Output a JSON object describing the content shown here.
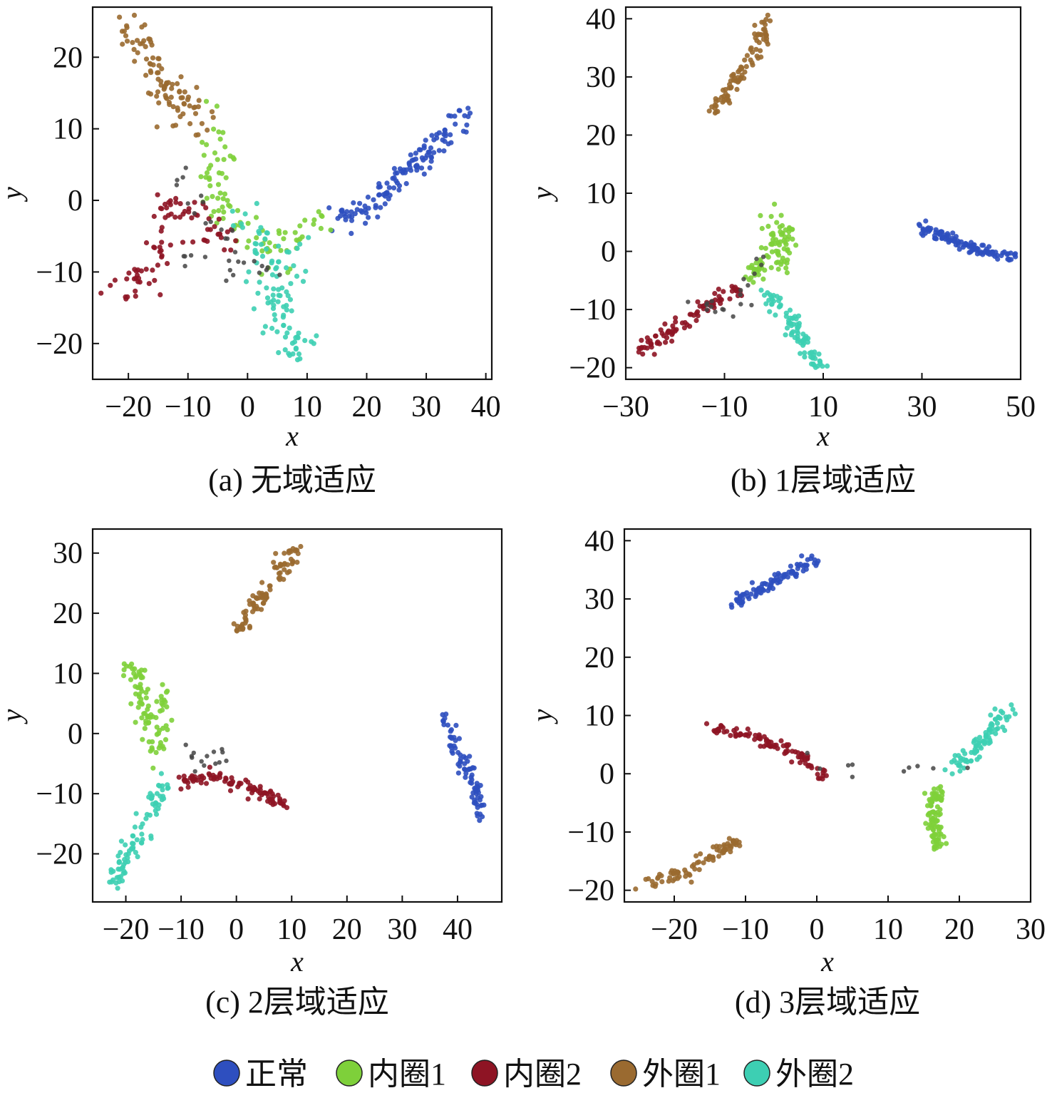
{
  "legend": [
    {
      "label": "正常",
      "color": "#2e4fbf"
    },
    {
      "label": "内圈1",
      "color": "#7ed03a"
    },
    {
      "label": "内圈2",
      "color": "#8e1424"
    },
    {
      "label": "外圈1",
      "color": "#9a6a30"
    },
    {
      "label": "外圈2",
      "color": "#3dcfb3"
    }
  ],
  "chart_data": [
    {
      "type": "scatter",
      "caption": "(a) 无域适应",
      "xlabel": "x",
      "ylabel": "y",
      "xlim": [
        -26,
        41
      ],
      "ylim": [
        -25,
        27
      ],
      "xticks": [
        -20,
        -10,
        0,
        10,
        20,
        30,
        40
      ],
      "yticks": [
        -20,
        -10,
        0,
        10,
        20
      ],
      "xtick_labels": [
        "−20",
        "−10",
        "0",
        "10",
        "20",
        "30",
        "40"
      ],
      "ytick_labels": [
        "−20",
        "−10",
        "0",
        "10",
        "20"
      ],
      "series": [
        {
          "name": "正常",
          "color": "#2e4fbf",
          "noise": 0.9,
          "count": 130,
          "path": [
            [
              15,
              -3
            ],
            [
              22,
              0
            ],
            [
              28,
              5
            ],
            [
              33,
              9
            ],
            [
              38,
              13
            ]
          ]
        },
        {
          "name": "内圈1",
          "color": "#7ed03a",
          "noise": 1.6,
          "count": 90,
          "path": [
            [
              -6,
              11
            ],
            [
              -5,
              5
            ],
            [
              -6,
              0
            ],
            [
              4,
              -7
            ],
            [
              9,
              -4
            ],
            [
              15,
              -4
            ]
          ]
        },
        {
          "name": "内圈2",
          "color": "#8e1424",
          "noise": 1.3,
          "count": 85,
          "path": [
            [
              -22,
              -12
            ],
            [
              -18,
              -11
            ],
            [
              -15,
              -9
            ],
            [
              -14,
              -4
            ],
            [
              -13,
              0
            ],
            [
              -2,
              -6
            ]
          ]
        },
        {
          "name": "外圈1",
          "color": "#9a6a30",
          "noise": 1.4,
          "count": 95,
          "path": [
            [
              -20,
              24
            ],
            [
              -17,
              20
            ],
            [
              -14,
              16
            ],
            [
              -11,
              13
            ],
            [
              -8,
              10
            ]
          ]
        },
        {
          "name": "外圈2",
          "color": "#3dcfb3",
          "noise": 1.6,
          "count": 100,
          "path": [
            [
              -1,
              -2
            ],
            [
              4,
              -8
            ],
            [
              6,
              -15
            ],
            [
              9,
              -22
            ],
            [
              3,
              -14
            ],
            [
              10,
              -6
            ]
          ]
        }
      ],
      "stray": {
        "color": "#444444",
        "count": 32,
        "path": [
          [
            -12,
            4
          ],
          [
            -8,
            0
          ],
          [
            -4,
            -4
          ],
          [
            -2,
            -8
          ],
          [
            4,
            -10
          ],
          [
            -11,
            -8
          ]
        ]
      }
    },
    {
      "type": "scatter",
      "caption": "(b) 1层域适应",
      "xlabel": "x",
      "ylabel": "y",
      "xlim": [
        -30,
        50
      ],
      "ylim": [
        -22,
        42
      ],
      "xticks": [
        -30,
        -10,
        10,
        30,
        50
      ],
      "yticks": [
        -20,
        -10,
        0,
        10,
        20,
        30,
        40
      ],
      "xtick_labels": [
        "−30",
        "−10",
        "10",
        "30",
        "50"
      ],
      "ytick_labels": [
        "−20",
        "−10",
        "0",
        "10",
        "20",
        "30",
        "40"
      ],
      "series": [
        {
          "name": "正常",
          "color": "#2e4fbf",
          "noise": 0.5,
          "count": 110,
          "path": [
            [
              30,
              4
            ],
            [
              39,
              1
            ],
            [
              49,
              -1
            ]
          ]
        },
        {
          "name": "内圈1",
          "color": "#7ed03a",
          "noise": 0.9,
          "count": 90,
          "path": [
            [
              -2,
              5
            ],
            [
              2,
              4
            ],
            [
              0,
              1
            ],
            [
              -4,
              -4
            ],
            [
              2,
              -2
            ],
            [
              3,
              4
            ]
          ]
        },
        {
          "name": "内圈2",
          "color": "#8e1424",
          "noise": 0.7,
          "count": 85,
          "path": [
            [
              -27,
              -17
            ],
            [
              -20,
              -13
            ],
            [
              -14,
              -10
            ],
            [
              -10,
              -7
            ],
            [
              -6,
              -7
            ]
          ]
        },
        {
          "name": "外圈1",
          "color": "#9a6a30",
          "noise": 0.8,
          "count": 90,
          "path": [
            [
              -12,
              24
            ],
            [
              -7,
              30
            ],
            [
              -3,
              36
            ],
            [
              -1,
              40
            ]
          ]
        },
        {
          "name": "外圈2",
          "color": "#3dcfb3",
          "noise": 0.8,
          "count": 85,
          "path": [
            [
              -2,
              -7
            ],
            [
              3,
              -11
            ],
            [
              5,
              -14
            ],
            [
              9,
              -20
            ]
          ]
        }
      ],
      "stray": {
        "color": "#444444",
        "count": 20,
        "path": [
          [
            -16,
            -9
          ],
          [
            -10,
            -10
          ],
          [
            -6,
            -9
          ],
          [
            -4,
            -4
          ],
          [
            -2,
            -1
          ]
        ]
      }
    },
    {
      "type": "scatter",
      "caption": "(c) 2层域适应",
      "xlabel": "x",
      "ylabel": "y",
      "xlim": [
        -26,
        48
      ],
      "ylim": [
        -28,
        34
      ],
      "xticks": [
        -20,
        -10,
        0,
        10,
        20,
        30,
        40
      ],
      "yticks": [
        -20,
        -10,
        0,
        10,
        20,
        30
      ],
      "xtick_labels": [
        "−20",
        "−10",
        "0",
        "10",
        "20",
        "30",
        "40"
      ],
      "ytick_labels": [
        "−20",
        "−10",
        "0",
        "10",
        "20",
        "30"
      ],
      "series": [
        {
          "name": "正常",
          "color": "#2e4fbf",
          "noise": 0.6,
          "count": 80,
          "path": [
            [
              37,
              3
            ],
            [
              40,
              -3
            ],
            [
              43,
              -8
            ],
            [
              44,
              -14
            ]
          ]
        },
        {
          "name": "内圈1",
          "color": "#7ed03a",
          "noise": 0.9,
          "count": 90,
          "path": [
            [
              -19,
              12
            ],
            [
              -17,
              5
            ],
            [
              -14,
              -3
            ],
            [
              -13,
              7
            ]
          ]
        },
        {
          "name": "内圈2",
          "color": "#8e1424",
          "noise": 0.6,
          "count": 95,
          "path": [
            [
              -10,
              -8
            ],
            [
              -4,
              -7
            ],
            [
              2,
              -9
            ],
            [
              9,
              -12
            ]
          ]
        },
        {
          "name": "外圈1",
          "color": "#9a6a30",
          "noise": 0.8,
          "count": 90,
          "path": [
            [
              0,
              17
            ],
            [
              4,
              22
            ],
            [
              8,
              27
            ],
            [
              11,
              31
            ]
          ]
        },
        {
          "name": "外圈2",
          "color": "#3dcfb3",
          "noise": 0.9,
          "count": 85,
          "path": [
            [
              -22,
              -25
            ],
            [
              -19,
              -19
            ],
            [
              -16,
              -14
            ],
            [
              -13,
              -8
            ]
          ]
        }
      ],
      "stray": {
        "color": "#444444",
        "count": 14,
        "path": [
          [
            -10,
            -1
          ],
          [
            -8,
            -3
          ],
          [
            -6,
            -5
          ],
          [
            -2,
            -3
          ]
        ]
      }
    },
    {
      "type": "scatter",
      "caption": "(d) 3层域适应",
      "xlabel": "x",
      "ylabel": "y",
      "xlim": [
        -27,
        30
      ],
      "ylim": [
        -22,
        42
      ],
      "xticks": [
        -20,
        -10,
        0,
        10,
        20,
        30
      ],
      "yticks": [
        -20,
        -10,
        0,
        10,
        20,
        30,
        40
      ],
      "xtick_labels": [
        "−20",
        "−10",
        "0",
        "10",
        "20",
        "30"
      ],
      "ytick_labels": [
        "−20",
        "−10",
        "0",
        "10",
        "20",
        "30",
        "40"
      ],
      "series": [
        {
          "name": "正常",
          "color": "#2e4fbf",
          "noise": 0.6,
          "count": 90,
          "path": [
            [
              -12,
              29
            ],
            [
              -6,
              33
            ],
            [
              0,
              37
            ]
          ]
        },
        {
          "name": "内圈1",
          "color": "#7ed03a",
          "noise": 0.6,
          "count": 90,
          "path": [
            [
              17,
              -3
            ],
            [
              16,
              -8
            ],
            [
              17,
              -12
            ],
            [
              18,
              -12
            ]
          ]
        },
        {
          "name": "内圈2",
          "color": "#8e1424",
          "noise": 0.5,
          "count": 95,
          "path": [
            [
              -15,
              8
            ],
            [
              -8,
              6
            ],
            [
              -2,
              3
            ],
            [
              1,
              -1
            ]
          ]
        },
        {
          "name": "外圈1",
          "color": "#9a6a30",
          "noise": 0.7,
          "count": 80,
          "path": [
            [
              -24,
              -19
            ],
            [
              -18,
              -17
            ],
            [
              -14,
              -13
            ],
            [
              -11,
              -12
            ]
          ]
        },
        {
          "name": "外圈2",
          "color": "#3dcfb3",
          "noise": 0.7,
          "count": 85,
          "path": [
            [
              19,
              1
            ],
            [
              23,
              5
            ],
            [
              27,
              11
            ]
          ]
        }
      ],
      "stray": {
        "color": "#444444",
        "count": 10,
        "path": [
          [
            -4,
            4
          ],
          [
            0,
            1
          ],
          [
            16,
            1
          ],
          [
            20,
            1
          ]
        ]
      }
    }
  ]
}
